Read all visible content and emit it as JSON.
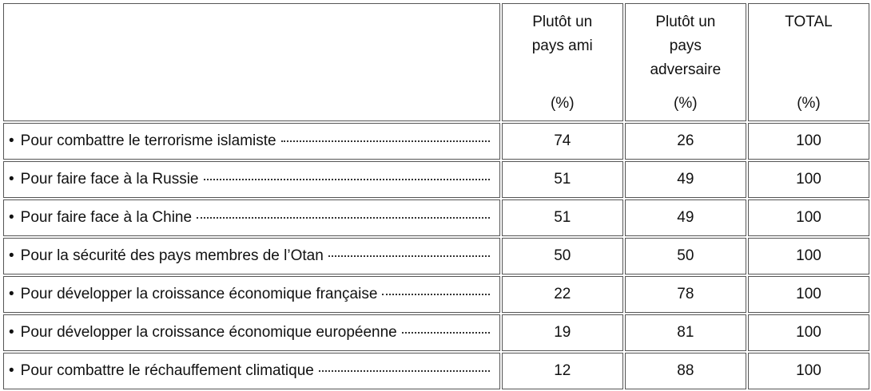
{
  "table": {
    "columns": [
      {
        "lines": [
          "Plutôt un",
          "pays ami"
        ],
        "unit": "(%)"
      },
      {
        "lines": [
          "Plutôt un",
          "pays",
          "adversaire"
        ],
        "unit": "(%)"
      },
      {
        "lines": [
          "TOTAL"
        ],
        "unit": "(%)"
      }
    ],
    "rows": [
      {
        "label": "Pour combattre le terrorisme islamiste",
        "values": [
          74,
          26,
          100
        ]
      },
      {
        "label": "Pour faire face à la Russie",
        "values": [
          51,
          49,
          100
        ]
      },
      {
        "label": "Pour faire face à la Chine",
        "values": [
          51,
          49,
          100
        ]
      },
      {
        "label": "Pour la sécurité des pays membres de l’Otan",
        "values": [
          50,
          50,
          100
        ]
      },
      {
        "label": "Pour développer la croissance économique française",
        "values": [
          22,
          78,
          100
        ]
      },
      {
        "label": "Pour développer la croissance économique européenne",
        "values": [
          19,
          81,
          100
        ]
      },
      {
        "label": "Pour combattre le réchauffement climatique",
        "values": [
          12,
          88,
          100
        ]
      }
    ]
  }
}
